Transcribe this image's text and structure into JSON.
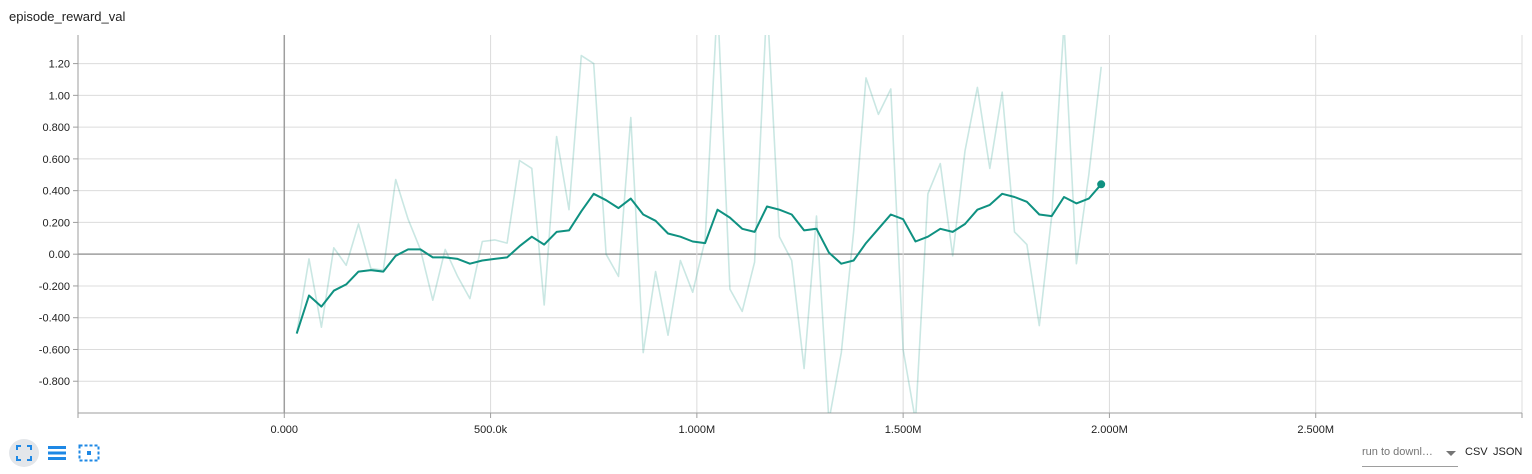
{
  "card": {
    "title": "episode_reward_val"
  },
  "chart_data": {
    "type": "line",
    "title": "episode_reward_val",
    "xlabel": "",
    "ylabel": "",
    "xlim": [
      -500000,
      3000000
    ],
    "ylim": [
      -1.0,
      1.38
    ],
    "x_ticks": [
      0,
      500000,
      1000000,
      1500000,
      2000000,
      2500000
    ],
    "x_tick_labels": [
      "0.000",
      "500.0k",
      "1.000M",
      "1.500M",
      "2.000M",
      "2.500M"
    ],
    "y_ticks": [
      -0.8,
      -0.6,
      -0.4,
      -0.2,
      0.0,
      0.2,
      0.4,
      0.6,
      0.8,
      1.0,
      1.2
    ],
    "y_tick_labels": [
      "-0.800",
      "-0.600",
      "-0.400",
      "-0.200",
      "0.00",
      "0.200",
      "0.400",
      "0.600",
      "0.800",
      "1.00",
      "1.20"
    ],
    "grid": true,
    "colors": {
      "smoothed": "#0f9181",
      "raw": "#0f9181"
    },
    "series": [
      {
        "role": "raw",
        "x": [
          30000,
          60000,
          90000,
          120000,
          150000,
          180000,
          210000,
          240000,
          270000,
          300000,
          330000,
          360000,
          390000,
          420000,
          450000,
          480000,
          510000,
          540000,
          570000,
          600000,
          630000,
          660000,
          690000,
          720000,
          750000,
          780000,
          810000,
          840000,
          870000,
          900000,
          930000,
          960000,
          990000,
          1020000,
          1050000,
          1080000,
          1110000,
          1140000,
          1170000,
          1200000,
          1230000,
          1260000,
          1290000,
          1320000,
          1350000,
          1380000,
          1410000,
          1440000,
          1470000,
          1500000,
          1530000,
          1560000,
          1590000,
          1620000,
          1650000,
          1680000,
          1710000,
          1740000,
          1770000,
          1800000,
          1830000,
          1860000,
          1890000,
          1920000,
          1950000,
          1980000
        ],
        "values": [
          -0.5,
          -0.03,
          -0.46,
          0.04,
          -0.07,
          0.19,
          -0.09,
          -0.1,
          0.47,
          0.22,
          0.03,
          -0.29,
          0.03,
          -0.14,
          -0.28,
          0.08,
          0.09,
          0.07,
          0.59,
          0.54,
          -0.32,
          0.74,
          0.28,
          1.25,
          1.2,
          0.0,
          -0.14,
          0.86,
          -0.62,
          -0.11,
          -0.51,
          -0.04,
          -0.24,
          0.09,
          1.6,
          -0.22,
          -0.36,
          -0.05,
          1.6,
          0.11,
          -0.04,
          -0.72,
          0.24,
          -1.05,
          -0.62,
          0.14,
          1.11,
          0.88,
          1.04,
          -0.6,
          -1.05,
          0.38,
          0.57,
          -0.01,
          0.65,
          1.05,
          0.54,
          1.02,
          0.14,
          0.06,
          -0.45,
          0.24,
          1.45,
          -0.06,
          0.5,
          1.18
        ]
      },
      {
        "role": "smoothed",
        "x": [
          30000,
          60000,
          90000,
          120000,
          150000,
          180000,
          210000,
          240000,
          270000,
          300000,
          330000,
          360000,
          390000,
          420000,
          450000,
          480000,
          510000,
          540000,
          570000,
          600000,
          630000,
          660000,
          690000,
          720000,
          750000,
          780000,
          810000,
          840000,
          870000,
          900000,
          930000,
          960000,
          990000,
          1020000,
          1050000,
          1080000,
          1110000,
          1140000,
          1170000,
          1200000,
          1230000,
          1260000,
          1290000,
          1320000,
          1350000,
          1380000,
          1410000,
          1440000,
          1470000,
          1500000,
          1530000,
          1560000,
          1590000,
          1620000,
          1650000,
          1680000,
          1710000,
          1740000,
          1770000,
          1800000,
          1830000,
          1860000,
          1890000,
          1920000,
          1950000,
          1980000
        ],
        "values": [
          -0.5,
          -0.26,
          -0.33,
          -0.23,
          -0.19,
          -0.11,
          -0.1,
          -0.11,
          -0.01,
          0.03,
          0.03,
          -0.02,
          -0.02,
          -0.03,
          -0.06,
          -0.04,
          -0.03,
          -0.02,
          0.05,
          0.11,
          0.06,
          0.14,
          0.15,
          0.27,
          0.38,
          0.34,
          0.29,
          0.35,
          0.25,
          0.21,
          0.13,
          0.11,
          0.08,
          0.07,
          0.28,
          0.23,
          0.16,
          0.14,
          0.3,
          0.28,
          0.25,
          0.15,
          0.16,
          0.01,
          -0.06,
          -0.04,
          0.07,
          0.16,
          0.25,
          0.22,
          0.08,
          0.11,
          0.16,
          0.14,
          0.19,
          0.28,
          0.31,
          0.38,
          0.36,
          0.33,
          0.25,
          0.24,
          0.36,
          0.32,
          0.35,
          0.44
        ]
      }
    ]
  },
  "toolbar": {
    "expand_icon": "fullscreen-icon",
    "log_icon": "lines-icon",
    "fit_icon": "fit-domain-icon",
    "run_select_label": "run to downl…",
    "csv_label": "CSV",
    "json_label": "JSON"
  }
}
